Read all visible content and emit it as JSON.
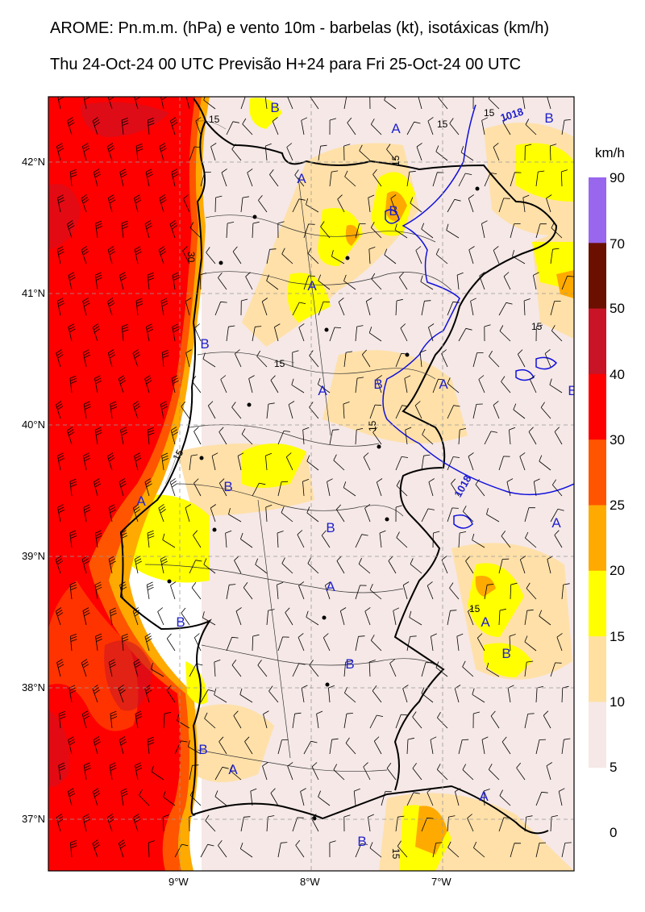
{
  "title_line1": "AROME: Pn.m.m. (hPa) e vento 10m - barbelas (kt), isotáxicas (km/h)",
  "title_line2": "Thu 24-Oct-24 00 UTC Previsão H+24 para Fri 25-Oct-24 00 UTC",
  "lat_labels": [
    "42°N",
    "41°N",
    "40°N",
    "39°N",
    "38°N",
    "37°N"
  ],
  "lon_labels": [
    "9°W",
    "8°W",
    "7°W"
  ],
  "colorbar": {
    "unit": "km/h",
    "labels": [
      "90",
      "70",
      "50",
      "40",
      "30",
      "25",
      "20",
      "15",
      "10",
      "5",
      "0"
    ],
    "colors": [
      "#9966ee",
      "#6b1000",
      "#c81426",
      "#ff0000",
      "#ff5500",
      "#ffaa00",
      "#ffff00",
      "#ffe0a0",
      "#f5e8e6"
    ]
  },
  "isobar_labels": [
    "1018",
    "1018"
  ],
  "isotach_labels": [
    "15",
    "15",
    "15",
    "15",
    "15",
    "15",
    "15",
    "15",
    "15",
    "30"
  ],
  "pressure_markers": [
    "A",
    "A",
    "A",
    "A",
    "A",
    "A",
    "A",
    "A",
    "A",
    "A",
    "B",
    "B",
    "B",
    "B",
    "B",
    "B",
    "B",
    "B",
    "B",
    "B",
    "B",
    "B"
  ]
}
